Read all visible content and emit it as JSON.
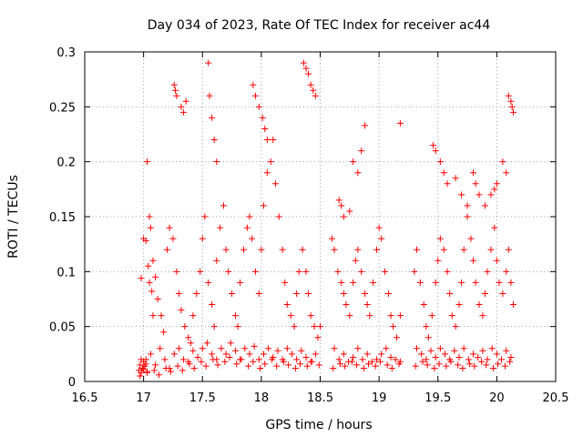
{
  "chart_data": {
    "type": "scatter",
    "title": "Day 034 of 2023, Rate Of TEC Index for receiver ac44",
    "xlabel": "GPS time / hours",
    "ylabel": "ROTI / TECUs",
    "xlim": [
      16.5,
      20.5
    ],
    "ylim": [
      0,
      0.3
    ],
    "xticks": [
      16.5,
      17,
      17.5,
      18,
      18.5,
      19,
      19.5,
      20,
      20.5
    ],
    "xtick_labels": [
      "16.5",
      "17",
      "17.5",
      "18",
      "18.5",
      "19",
      "19.5",
      "20",
      "20.5"
    ],
    "yticks": [
      0,
      0.05,
      0.1,
      0.15,
      0.2,
      0.25,
      0.3
    ],
    "ytick_labels": [
      "0",
      "0.05",
      "0.1",
      "0.15",
      "0.2",
      "0.25",
      "0.3"
    ],
    "grid": true,
    "marker": "+",
    "marker_color": "#ff0000",
    "series": [
      {
        "x": [
          16.96,
          16.97,
          16.98,
          16.99,
          17.0,
          17.01,
          16.97,
          16.98,
          17.0,
          17.02,
          17.03,
          16.98,
          17.0,
          17.02,
          17.04,
          17.05,
          17.07,
          17.08,
          17.03,
          17.05,
          17.06,
          17.08,
          17.1,
          17.12,
          17.15,
          17.17,
          17.2,
          17.22,
          17.25,
          17.28,
          17.3,
          17.32,
          17.35,
          17.38,
          17.4,
          17.42,
          17.45,
          17.48,
          17.5,
          17.52,
          17.55,
          17.58,
          17.6,
          17.62,
          17.65,
          17.68,
          17.7,
          17.72,
          17.75,
          17.78,
          17.8,
          17.82,
          17.85,
          17.88,
          17.9,
          17.92,
          17.95,
          17.98,
          18.0,
          18.02,
          18.05,
          18.08,
          18.1,
          18.12,
          18.15,
          18.18,
          18.2,
          18.22,
          18.25,
          18.28,
          18.3,
          18.32,
          18.35,
          18.38,
          18.4,
          18.42,
          18.45,
          18.48,
          18.5,
          17.26,
          17.27,
          17.28,
          17.32,
          17.34,
          17.36,
          17.55,
          17.56,
          17.58,
          17.6,
          17.62,
          17.93,
          17.95,
          17.98,
          18.01,
          18.03,
          18.05,
          18.36,
          18.38,
          18.4,
          18.42,
          18.44,
          18.46,
          18.66,
          18.68,
          18.7,
          18.75,
          18.78,
          18.82,
          18.85,
          18.88,
          19.18,
          19.46,
          19.48,
          19.52,
          19.55,
          19.58,
          19.65,
          19.7,
          19.75,
          19.8,
          19.82,
          19.85,
          19.9,
          19.95,
          19.98,
          20.0,
          20.05,
          20.08,
          20.1,
          20.12,
          20.13,
          20.14,
          18.6,
          18.62,
          18.65,
          18.68,
          18.7,
          18.72,
          18.75,
          18.78,
          18.8,
          18.82,
          18.85,
          18.88,
          18.9,
          18.92,
          18.95,
          18.98,
          19.0,
          19.02,
          19.05,
          19.08,
          19.1,
          19.12,
          19.15,
          19.18,
          19.3,
          19.32,
          19.35,
          19.38,
          19.4,
          19.42,
          19.45,
          19.48,
          19.5,
          19.52,
          19.55,
          19.58,
          19.6,
          19.62,
          19.65,
          19.68,
          19.7,
          19.72,
          19.75,
          19.78,
          19.8,
          19.82,
          19.85,
          19.88,
          19.9,
          19.92,
          19.95,
          19.98,
          20.0,
          20.02,
          20.05,
          20.08,
          20.1,
          20.12,
          20.14,
          17.02,
          17.06,
          17.1,
          17.14,
          17.18,
          17.22,
          17.26,
          17.3,
          17.34,
          17.38,
          17.42,
          17.46,
          17.5,
          17.54,
          17.58,
          17.62,
          17.66,
          17.7,
          17.74,
          17.78,
          17.82,
          17.86,
          17.9,
          17.94,
          17.98,
          18.02,
          18.06,
          18.1,
          18.14,
          18.18,
          18.22,
          18.26,
          18.3,
          18.34,
          18.38,
          18.42,
          18.46,
          18.62,
          18.66,
          18.7,
          18.74,
          18.78,
          18.82,
          18.86,
          18.9,
          18.94,
          18.98,
          19.02,
          19.06,
          19.1,
          19.14,
          19.18,
          19.32,
          19.36,
          19.4,
          19.44,
          19.48,
          19.52,
          19.56,
          19.6,
          19.64,
          19.68,
          19.72,
          19.76,
          19.8,
          19.84,
          19.88,
          19.92,
          19.96,
          20.0,
          20.04,
          20.08,
          20.12,
          16.99,
          17.03,
          17.09,
          17.13,
          17.19,
          17.23,
          17.29,
          17.33,
          17.39,
          17.43,
          17.49,
          17.53,
          17.59,
          17.63,
          17.69,
          17.73,
          17.79,
          17.83,
          17.89,
          17.93,
          17.99,
          18.03,
          18.09,
          18.13,
          18.19,
          18.23,
          18.29,
          18.33,
          18.39,
          18.43,
          18.49,
          18.61,
          18.67,
          18.71,
          18.77,
          18.81,
          18.87,
          18.91,
          18.97,
          19.01,
          19.07,
          19.11,
          19.17,
          19.31,
          19.37,
          19.41,
          19.47,
          19.51,
          19.57,
          19.61,
          19.67,
          19.71,
          19.77,
          19.81,
          19.87,
          19.91,
          19.97,
          20.01,
          20.07,
          20.11
        ],
        "y": [
          0.01,
          0.015,
          0.008,
          0.012,
          0.018,
          0.014,
          0.005,
          0.02,
          0.011,
          0.016,
          0.009,
          0.094,
          0.13,
          0.128,
          0.105,
          0.09,
          0.082,
          0.06,
          0.2,
          0.15,
          0.14,
          0.11,
          0.095,
          0.075,
          0.06,
          0.045,
          0.12,
          0.14,
          0.13,
          0.1,
          0.08,
          0.065,
          0.05,
          0.04,
          0.035,
          0.06,
          0.08,
          0.1,
          0.13,
          0.15,
          0.09,
          0.07,
          0.05,
          0.11,
          0.14,
          0.16,
          0.12,
          0.1,
          0.08,
          0.06,
          0.05,
          0.09,
          0.12,
          0.14,
          0.15,
          0.13,
          0.1,
          0.08,
          0.12,
          0.16,
          0.19,
          0.2,
          0.22,
          0.18,
          0.15,
          0.12,
          0.09,
          0.07,
          0.06,
          0.05,
          0.08,
          0.1,
          0.12,
          0.1,
          0.08,
          0.06,
          0.05,
          0.04,
          0.05,
          0.27,
          0.265,
          0.26,
          0.25,
          0.245,
          0.255,
          0.29,
          0.26,
          0.24,
          0.22,
          0.2,
          0.27,
          0.26,
          0.25,
          0.24,
          0.23,
          0.22,
          0.29,
          0.285,
          0.28,
          0.27,
          0.265,
          0.26,
          0.165,
          0.16,
          0.15,
          0.155,
          0.2,
          0.19,
          0.21,
          0.233,
          0.235,
          0.215,
          0.21,
          0.2,
          0.19,
          0.18,
          0.185,
          0.17,
          0.16,
          0.19,
          0.18,
          0.17,
          0.16,
          0.17,
          0.175,
          0.18,
          0.2,
          0.19,
          0.26,
          0.255,
          0.25,
          0.245,
          0.13,
          0.12,
          0.1,
          0.09,
          0.08,
          0.07,
          0.06,
          0.09,
          0.11,
          0.12,
          0.1,
          0.08,
          0.07,
          0.06,
          0.09,
          0.12,
          0.14,
          0.13,
          0.1,
          0.08,
          0.06,
          0.05,
          0.04,
          0.06,
          0.1,
          0.12,
          0.09,
          0.07,
          0.05,
          0.04,
          0.06,
          0.09,
          0.11,
          0.13,
          0.12,
          0.1,
          0.08,
          0.06,
          0.05,
          0.07,
          0.09,
          0.12,
          0.15,
          0.13,
          0.11,
          0.09,
          0.07,
          0.06,
          0.08,
          0.1,
          0.12,
          0.14,
          0.11,
          0.09,
          0.08,
          0.1,
          0.12,
          0.09,
          0.07,
          0.02,
          0.025,
          0.015,
          0.03,
          0.02,
          0.012,
          0.025,
          0.03,
          0.02,
          0.018,
          0.028,
          0.022,
          0.03,
          0.035,
          0.025,
          0.02,
          0.03,
          0.025,
          0.035,
          0.028,
          0.02,
          0.03,
          0.025,
          0.032,
          0.02,
          0.025,
          0.03,
          0.022,
          0.028,
          0.02,
          0.03,
          0.025,
          0.02,
          0.028,
          0.022,
          0.018,
          0.025,
          0.03,
          0.02,
          0.025,
          0.018,
          0.022,
          0.03,
          0.02,
          0.025,
          0.018,
          0.02,
          0.025,
          0.03,
          0.022,
          0.02,
          0.018,
          0.03,
          0.025,
          0.02,
          0.028,
          0.022,
          0.03,
          0.025,
          0.02,
          0.028,
          0.022,
          0.03,
          0.02,
          0.025,
          0.022,
          0.028,
          0.02,
          0.03,
          0.025,
          0.02,
          0.028,
          0.022,
          0.012,
          0.008,
          0.01,
          0.006,
          0.012,
          0.009,
          0.014,
          0.01,
          0.016,
          0.012,
          0.018,
          0.014,
          0.02,
          0.015,
          0.018,
          0.022,
          0.016,
          0.02,
          0.014,
          0.018,
          0.012,
          0.016,
          0.02,
          0.014,
          0.018,
          0.015,
          0.012,
          0.016,
          0.014,
          0.018,
          0.015,
          0.012,
          0.016,
          0.014,
          0.018,
          0.015,
          0.012,
          0.016,
          0.014,
          0.018,
          0.015,
          0.012,
          0.016,
          0.014,
          0.018,
          0.015,
          0.012,
          0.016,
          0.014,
          0.018,
          0.015,
          0.012,
          0.016,
          0.014,
          0.018,
          0.015,
          0.012,
          0.016,
          0.014,
          0.018
        ]
      }
    ]
  }
}
